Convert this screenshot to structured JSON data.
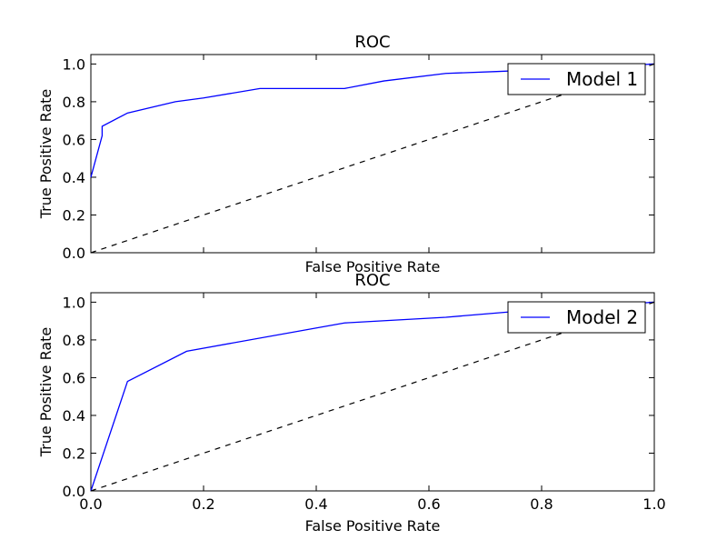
{
  "figure": {
    "panels": [
      {
        "title": "ROC",
        "xlabel": "False Positive Rate",
        "ylabel": "True Positive Rate",
        "legend_label": "Model 1",
        "legend_position": "upper-right",
        "x_ticks_visible": false
      },
      {
        "title": "ROC",
        "xlabel": "False Positive Rate",
        "ylabel": "True Positive Rate",
        "legend_label": "Model 2",
        "legend_position": "upper-right",
        "x_ticks_visible": true
      }
    ]
  },
  "chart_data": [
    {
      "type": "line",
      "title": "ROC",
      "xlabel": "False Positive Rate",
      "ylabel": "True Positive Rate",
      "xlim": [
        0.0,
        1.0
      ],
      "ylim": [
        0.0,
        1.05
      ],
      "xticks": [
        "0.0",
        "0.2",
        "0.4",
        "0.6",
        "0.8",
        "1.0"
      ],
      "yticks": [
        "0.0",
        "0.2",
        "0.4",
        "0.6",
        "0.8",
        "1.0"
      ],
      "grid": false,
      "legend": "upper-right",
      "series": [
        {
          "name": "Model 1",
          "color": "#0000ff",
          "style": "solid",
          "x": [
            0.0,
            0.02,
            0.02,
            0.065,
            0.15,
            0.2,
            0.3,
            0.45,
            0.52,
            0.63,
            0.72,
            0.8,
            1.0
          ],
          "y": [
            0.4,
            0.62,
            0.67,
            0.74,
            0.8,
            0.82,
            0.87,
            0.87,
            0.91,
            0.95,
            0.96,
            0.97,
            1.0
          ]
        },
        {
          "name": "",
          "color": "#000000",
          "style": "dashed",
          "x": [
            0.0,
            1.0
          ],
          "y": [
            0.0,
            1.0
          ]
        }
      ]
    },
    {
      "type": "line",
      "title": "ROC",
      "xlabel": "False Positive Rate",
      "ylabel": "True Positive Rate",
      "xlim": [
        0.0,
        1.0
      ],
      "ylim": [
        0.0,
        1.05
      ],
      "xticks": [
        "0.0",
        "0.2",
        "0.4",
        "0.6",
        "0.8",
        "1.0"
      ],
      "yticks": [
        "0.0",
        "0.2",
        "0.4",
        "0.6",
        "0.8",
        "1.0"
      ],
      "grid": false,
      "legend": "upper-right",
      "series": [
        {
          "name": "Model 2",
          "color": "#0000ff",
          "style": "solid",
          "x": [
            0.0,
            0.065,
            0.17,
            0.45,
            0.63,
            0.75,
            1.0
          ],
          "y": [
            0.0,
            0.58,
            0.74,
            0.89,
            0.92,
            0.95,
            1.0
          ]
        },
        {
          "name": "",
          "color": "#000000",
          "style": "dashed",
          "x": [
            0.0,
            1.0
          ],
          "y": [
            0.0,
            1.0
          ]
        }
      ]
    }
  ]
}
